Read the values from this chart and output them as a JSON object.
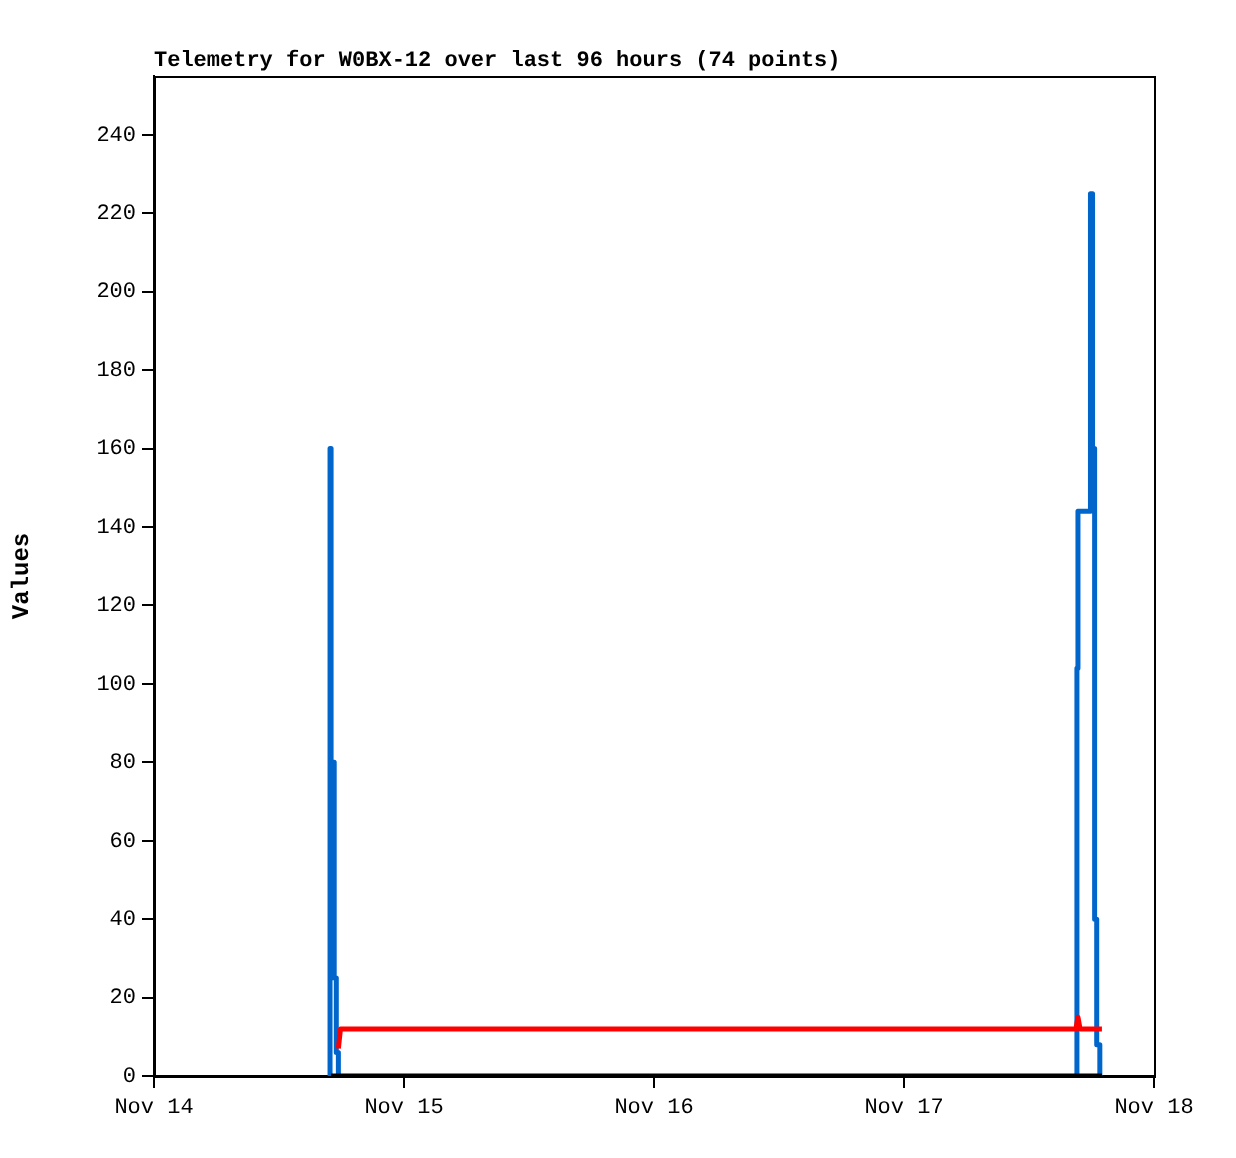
{
  "chart_data": {
    "type": "line",
    "title": "Telemetry for W0BX-12 over last 96 hours (74 points)",
    "ylabel": "Values",
    "xlim": [
      "--11-14",
      "--11-18"
    ],
    "xticks": [
      {
        "value": "--11-14",
        "label": "Nov 14"
      },
      {
        "value": "--11-15",
        "label": "Nov 15"
      },
      {
        "value": "--11-16",
        "label": "Nov 16"
      },
      {
        "value": "--11-17",
        "label": "Nov 17"
      },
      {
        "value": "--11-18",
        "label": "Nov 18"
      }
    ],
    "ylim": [
      0,
      255
    ],
    "yticks": [
      0,
      20,
      40,
      60,
      80,
      100,
      120,
      140,
      160,
      180,
      200,
      220,
      240
    ],
    "grid": false,
    "legend": false,
    "series": [
      {
        "type": "line",
        "color": "#ff0000",
        "x": [
          "--11-14T17:42",
          "--11-14T17:54",
          "--11-17T16:30",
          "--11-17T16:42",
          "--11-17T16:54",
          "--11-17T19:00"
        ],
        "values": [
          7,
          12,
          12,
          15,
          12,
          12
        ]
      },
      {
        "type": "line",
        "color": "#000000",
        "x": [
          "--11-14T17:00",
          "--11-17T19:00"
        ],
        "values": [
          0,
          0
        ]
      },
      {
        "type": "step",
        "color": "#0066cc",
        "x": [
          "--11-14T16:54",
          "--11-14T17:00",
          "--11-14T17:18",
          "--11-14T17:30",
          "--11-14T17:42",
          "--11-14T17:54",
          "--11-16T00:00",
          "--11-17T16:36",
          "--11-17T16:42",
          "--11-17T16:54",
          "--11-17T17:54",
          "--11-17T18:06",
          "--11-17T18:18",
          "--11-17T18:30",
          "--11-17T18:48",
          "--11-17T19:00"
        ],
        "values": [
          0,
          160,
          80,
          25,
          6,
          0,
          null,
          0,
          104,
          144,
          144,
          225,
          160,
          40,
          8,
          0
        ]
      }
    ]
  }
}
